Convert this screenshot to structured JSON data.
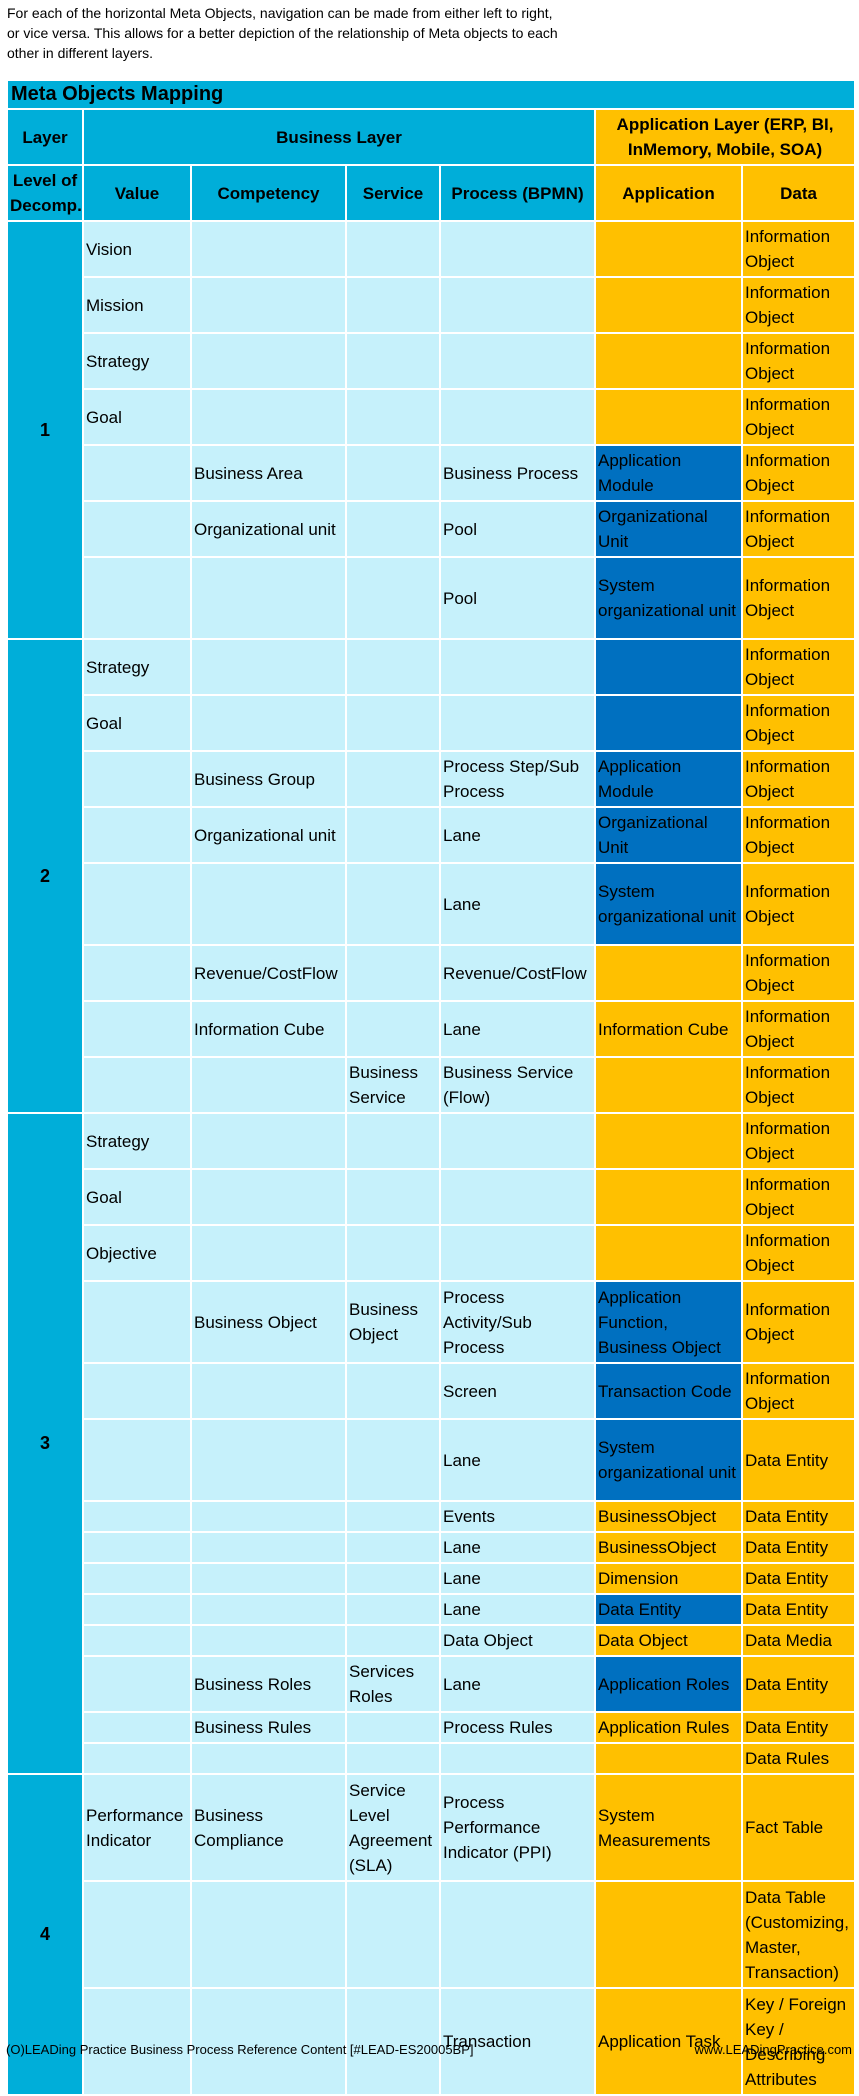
{
  "intro": "For each of the horizontal Meta Objects, navigation can be made from either left to right, or vice versa. This allows for a better depiction of the relationship of Meta objects to each other in different layers.",
  "table": {
    "title": "Meta Objects Mapping",
    "headers": {
      "layer": "Layer",
      "business_layer": "Business Layer",
      "application_layer": "Application Layer (ERP, BI, InMemory, Mobile, SOA)",
      "level": "Level of Decomp.",
      "value": "Value",
      "competency": "Competency",
      "service": "Service",
      "process": "Process (BPMN)",
      "application": "Application",
      "data": "Data"
    },
    "layers": [
      "1",
      "2",
      "3",
      "4"
    ]
  },
  "rows": [
    {
      "value": "Vision",
      "competency": "",
      "service": "",
      "process": "",
      "application": "",
      "app_color": "yellow",
      "data": "Information Object"
    },
    {
      "value": "Mission",
      "competency": "",
      "service": "",
      "process": "",
      "application": "",
      "app_color": "yellow",
      "data": " Information Object"
    },
    {
      "value": "Strategy",
      "competency": "",
      "service": "",
      "process": "",
      "application": "",
      "app_color": "yellow",
      "data": "Information Object"
    },
    {
      "value": "Goal",
      "competency": "",
      "service": "",
      "process": "",
      "application": "",
      "app_color": "yellow",
      "data": " Information Object"
    },
    {
      "value": "",
      "competency": "Business Area",
      "service": "",
      "process": "Business Process",
      "application": "Application Module",
      "app_color": "blue",
      "data": "Information Object"
    },
    {
      "value": "",
      "competency": "Organizational unit",
      "service": "",
      "process": "Pool",
      "application": "Organizational Unit",
      "app_color": "blue",
      "data": "Information Object"
    },
    {
      "value": "",
      "competency": "",
      "service": "",
      "process": "Pool",
      "application": "System organizational unit",
      "app_color": "blue",
      "data": "Information Object"
    },
    {
      "value": "Strategy",
      "competency": "",
      "service": "",
      "process": "",
      "application": "",
      "app_color": "blue",
      "data": "Information Object"
    },
    {
      "value": "Goal",
      "competency": "",
      "service": "",
      "process": "",
      "application": "",
      "app_color": "blue",
      "data": "Information Object"
    },
    {
      "value": "",
      "competency": "Business Group",
      "service": "",
      "process": "Process Step/Sub Process",
      "application": "Application Module",
      "app_color": "blue",
      "data": "Information Object"
    },
    {
      "value": "",
      "competency": "Organizational unit",
      "service": "",
      "process": "Lane",
      "application": "Organizational Unit",
      "app_color": "blue",
      "data": "Information Object"
    },
    {
      "value": "",
      "competency": "",
      "service": "",
      "process": "Lane",
      "application": "System organizational unit",
      "app_color": "blue",
      "data": "Information Object"
    },
    {
      "value": "",
      "competency": "Revenue/CostFlow",
      "service": "",
      "process": "Revenue/CostFlow",
      "application": "",
      "app_color": "yellow",
      "data": "Information Object"
    },
    {
      "value": "",
      "competency": "Information Cube",
      "service": "",
      "process": "Lane",
      "application": "Information Cube",
      "app_color": "yellow",
      "data": "Information Object"
    },
    {
      "value": "",
      "competency": "",
      "service": "Business Service",
      "process": "Business Service (Flow)",
      "application": "",
      "app_color": "yellow",
      "data": "Information Object"
    },
    {
      "value": "Strategy",
      "competency": "",
      "service": "",
      "process": "",
      "application": "",
      "app_color": "yellow",
      "data": "Information Object"
    },
    {
      "value": "Goal",
      "competency": "",
      "service": "",
      "process": "",
      "application": "",
      "app_color": "yellow",
      "data": "Information Object"
    },
    {
      "value": "Objective",
      "competency": "",
      "service": "",
      "process": "",
      "application": "",
      "app_color": "yellow",
      "data": "Information Object"
    },
    {
      "value": "",
      "competency": "Business Object",
      "service": "Business Object",
      "process": "Process Activity/Sub Process",
      "application": "Application Function, Business Object",
      "app_color": "blue",
      "data": "Information Object"
    },
    {
      "value": "",
      "competency": "",
      "service": "",
      "process": "Screen",
      "application": "Transaction Code",
      "app_color": "blue",
      "data": "Information Object"
    },
    {
      "value": "",
      "competency": "",
      "service": "",
      "process": "Lane",
      "application": "System organizational unit",
      "app_color": "blue",
      "data": "Data Entity"
    },
    {
      "value": "",
      "competency": "",
      "service": "",
      "process": "Events",
      "application": "BusinessObject",
      "app_color": "yellow",
      "data": "Data Entity"
    },
    {
      "value": "",
      "competency": "",
      "service": "",
      "process": "Lane",
      "application": "BusinessObject",
      "app_color": "yellow",
      "data": "Data Entity"
    },
    {
      "value": "",
      "competency": "",
      "service": "",
      "process": "Lane",
      "application": "Dimension",
      "app_color": "yellow",
      "data": "Data Entity"
    },
    {
      "value": "",
      "competency": "",
      "service": "",
      "process": "Lane",
      "application": "Data Entity",
      "app_color": "blue",
      "data": "Data Entity"
    },
    {
      "value": "",
      "competency": "",
      "service": "",
      "process": "Data Object",
      "application": "Data Object",
      "app_color": "yellow",
      "data": "Data Media"
    },
    {
      "value": "",
      "competency": "Business Roles",
      "service": "Services Roles",
      "process": "Lane",
      "application": "Application Roles",
      "app_color": "blue",
      "data": "Data Entity"
    },
    {
      "value": "",
      "competency": "Business Rules",
      "service": "",
      "process": "Process Rules",
      "application": "Application Rules",
      "app_color": "yellow",
      "data": " Data Entity"
    },
    {
      "value": "",
      "competency": "",
      "service": "",
      "process": "",
      "application": "",
      "app_color": "yellow",
      "data": "Data Rules"
    },
    {
      "value": "Performance Indicator",
      "competency": "Business Compliance",
      "service": "Service Level Agreement (SLA)",
      "process": "Process Performance Indicator (PPI)",
      "application": "System Measurements",
      "app_color": "yellow",
      "data": "Fact Table"
    },
    {
      "value": "",
      "competency": "",
      "service": "",
      "process": "",
      "application": "",
      "app_color": "yellow",
      "data": "Data Table (Customizing, Master, Transaction)"
    },
    {
      "value": "",
      "competency": "",
      "service": "",
      "process": "Transaction",
      "application": "Application Task",
      "app_color": "yellow",
      "data": "Key / Foreign Key / Describing Attributes"
    }
  ],
  "footer": {
    "left": "(O)LEADing Practice Business Process Reference Content [#LEAD-ES20005BP]",
    "right": "www.LEADingPractice.com"
  },
  "colors": {
    "header_blue": "#00aed9",
    "light_blue": "#c6f1fb",
    "gold": "#ffc000",
    "dark_blue": "#0070c0"
  }
}
